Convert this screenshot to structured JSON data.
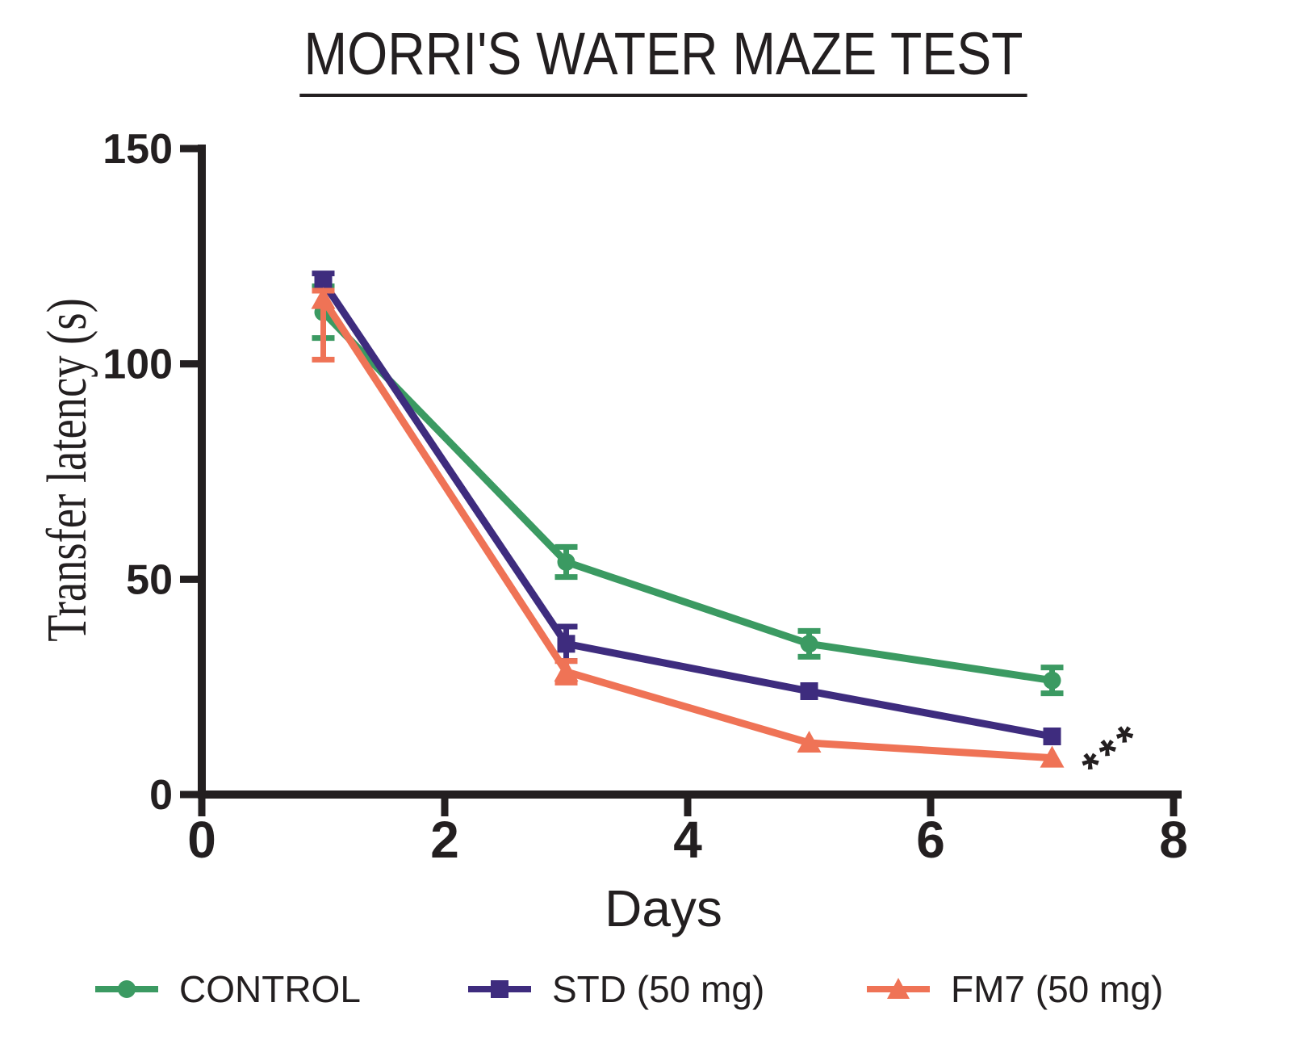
{
  "title": "MORRI'S WATER MAZE TEST",
  "chart_data": {
    "type": "line",
    "title": "MORRI'S WATER MAZE TEST",
    "xlabel": "Days",
    "ylabel": "Transfer latency (s)",
    "x": [
      1,
      3,
      5,
      7
    ],
    "xlim": [
      0,
      8
    ],
    "ylim": [
      0,
      150
    ],
    "xticks": [
      0,
      2,
      4,
      6,
      8
    ],
    "yticks": [
      0,
      50,
      100,
      150
    ],
    "grid": false,
    "legend_position": "bottom",
    "axis_color": "#231f20",
    "annotation": {
      "text": "***",
      "x": 7.45,
      "y": 12,
      "rotation_deg": -38
    },
    "series": [
      {
        "name": "CONTROL",
        "marker": "circle",
        "color": "#3B9A62",
        "values": [
          112,
          54,
          35,
          26.5
        ],
        "error_plus": [
          6,
          3.5,
          3,
          3
        ],
        "error_minus": [
          6,
          3.5,
          3,
          3
        ]
      },
      {
        "name": "STD (50 mg)",
        "marker": "square",
        "color": "#3E2C7E",
        "values": [
          119,
          35,
          24,
          13.5
        ],
        "error_plus": [
          2,
          4,
          0,
          0
        ],
        "error_minus": [
          2,
          4,
          0,
          0
        ]
      },
      {
        "name": "FM7 (50 mg)",
        "marker": "triangle",
        "color": "#EF7356",
        "values": [
          115,
          28.5,
          12,
          8.5
        ],
        "error_plus": [
          2,
          2.5,
          0,
          0
        ],
        "error_minus": [
          14,
          2.5,
          0,
          0
        ]
      }
    ]
  }
}
